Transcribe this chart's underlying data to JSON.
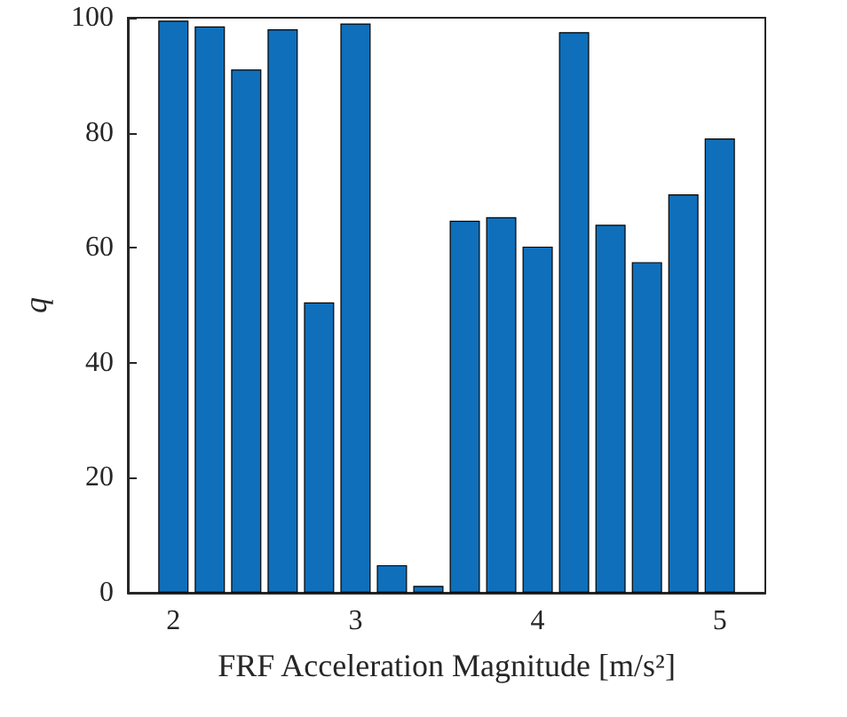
{
  "chart_data": {
    "type": "bar",
    "xlabel": "FRF Acceleration Magnitude [m/s²]",
    "ylabel": "q",
    "x": [
      2,
      2.2,
      2.4,
      2.6,
      2.8,
      3,
      3.2,
      3.4,
      3.6,
      3.8,
      4,
      4.2,
      4.4,
      4.6,
      4.8,
      5
    ],
    "values": [
      99.5,
      98.5,
      91,
      98,
      50.5,
      99,
      4.8,
      1.2,
      64.7,
      65.3,
      60.2,
      97.5,
      64,
      57.5,
      69.3,
      79
    ],
    "color": "#0f6fba",
    "xlim": [
      1.75,
      5.25
    ],
    "xticks": [
      2,
      3,
      4,
      5
    ],
    "ylim": [
      0,
      100
    ],
    "yticks": [
      0,
      20,
      40,
      60,
      80,
      100
    ]
  }
}
